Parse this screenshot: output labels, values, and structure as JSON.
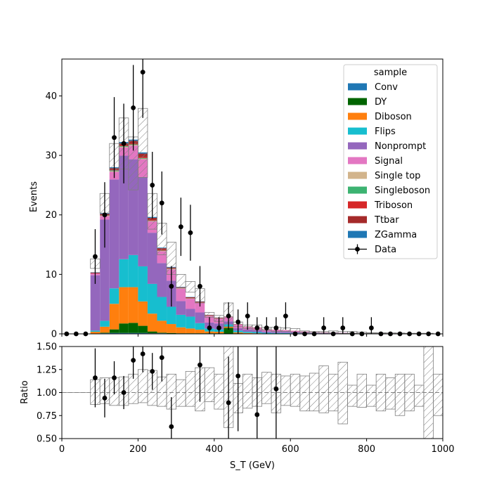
{
  "chart_data": [
    {
      "type": "bar",
      "stacked": true,
      "histogram": true,
      "ylabel": "Events",
      "xlim": [
        0,
        1000
      ],
      "ylim": [
        0,
        46.2
      ],
      "yticks": [
        0,
        10,
        20,
        30,
        40
      ],
      "bin_width": 25,
      "bin_low": [
        0,
        25,
        50,
        75,
        100,
        125,
        150,
        175,
        200,
        225,
        250,
        275,
        300,
        325,
        350,
        375,
        400,
        425,
        450,
        475,
        500,
        525,
        550,
        575,
        600,
        625,
        650,
        675,
        700,
        725,
        750,
        775,
        800,
        825,
        850,
        875,
        900,
        925,
        950,
        975
      ],
      "legend": {
        "title": "sample",
        "placement": "top-right"
      },
      "series": [
        {
          "name": "Conv",
          "color": "#1f77b4",
          "values": [
            0,
            0,
            0,
            0.05,
            0.1,
            0.15,
            0.15,
            0.15,
            0.15,
            0.1,
            0.1,
            0.05,
            0.05,
            0.05,
            0.05,
            0,
            0,
            0,
            0,
            0,
            0,
            0,
            0,
            0,
            0,
            0,
            0,
            0,
            0,
            0,
            0,
            0,
            0,
            0,
            0,
            0,
            0,
            0,
            0,
            0
          ]
        },
        {
          "name": "DY",
          "color": "#006400",
          "values": [
            0,
            0,
            0,
            0,
            0.1,
            0.6,
            1.6,
            1.7,
            1.2,
            0.3,
            0.1,
            0.1,
            0.05,
            0.05,
            0.05,
            0.1,
            0.1,
            1.0,
            0.1,
            0.05,
            0,
            0,
            0,
            0,
            0,
            0,
            0,
            0,
            0,
            0,
            0,
            0,
            0,
            0,
            0,
            0,
            0,
            0,
            0,
            0
          ]
        },
        {
          "name": "Diboson",
          "color": "#ff7f0e",
          "values": [
            0,
            0,
            0,
            0.3,
            1.0,
            4.3,
            6.1,
            6.0,
            4.1,
            3.0,
            2.0,
            1.5,
            1.0,
            0.8,
            0.6,
            0.3,
            0.25,
            0.2,
            0.15,
            0.1,
            0.1,
            0.05,
            0.05,
            0.05,
            0.05,
            0.03,
            0.03,
            0.02,
            0.02,
            0.02,
            0.02,
            0.02,
            0.02,
            0.02,
            0.01,
            0.01,
            0.01,
            0.01,
            0.01,
            0
          ]
        },
        {
          "name": "Flips",
          "color": "#17becf",
          "values": [
            0,
            0,
            0,
            0.2,
            1.0,
            2.6,
            4.7,
            5.4,
            5.9,
            5.0,
            4.0,
            2.9,
            2.1,
            2.0,
            1.1,
            0.5,
            0.4,
            0.4,
            0.3,
            0.2,
            0.2,
            0.15,
            0.1,
            0.1,
            0.05,
            0.05,
            0.05,
            0.05,
            0.05,
            0.05,
            0.03,
            0.03,
            0.03,
            0.02,
            0.02,
            0.02,
            0.01,
            0.01,
            0.01,
            0
          ]
        },
        {
          "name": "Nonprompt",
          "color": "#9467bd",
          "values": [
            0,
            0,
            0,
            9.3,
            17.0,
            18.3,
            17.4,
            16.1,
            15.0,
            8.6,
            5.7,
            4.4,
            2.3,
            1.3,
            1.8,
            1.0,
            1.0,
            0.5,
            0.4,
            0.4,
            0.3,
            0.2,
            0.2,
            0.2,
            0.2,
            0.15,
            0.1,
            0.1,
            0.1,
            0.08,
            0.06,
            0.05,
            0.05,
            0.04,
            0.03,
            0.02,
            0.02,
            0.02,
            0.01,
            0
          ]
        },
        {
          "name": "Signal",
          "color": "#e377c2",
          "values": [
            0,
            0,
            0,
            0.3,
            0.6,
            1.3,
            1.4,
            2.3,
            3.0,
            1.9,
            2.0,
            1.9,
            2.1,
            1.7,
            1.6,
            1.1,
            0.8,
            0.7,
            0.6,
            0.4,
            0.4,
            0.3,
            0.3,
            0.25,
            0.2,
            0.15,
            0.1,
            0.08,
            0.06,
            0.05,
            0.04,
            0.03,
            0.03,
            0.02,
            0.02,
            0.01,
            0.01,
            0.01,
            0.01,
            0
          ]
        },
        {
          "name": "Single top",
          "color": "#d2b48c",
          "values": [
            0,
            0,
            0,
            0,
            0.05,
            0.1,
            0.1,
            0.1,
            0.1,
            0.05,
            0.05,
            0.05,
            0.03,
            0.03,
            0.02,
            0.02,
            0.02,
            0.01,
            0.01,
            0.01,
            0,
            0,
            0,
            0,
            0,
            0,
            0,
            0,
            0,
            0,
            0,
            0,
            0,
            0,
            0,
            0,
            0,
            0,
            0,
            0
          ]
        },
        {
          "name": "Singleboson",
          "color": "#3cb371",
          "values": [
            0,
            0,
            0,
            0,
            0.05,
            0.1,
            0.1,
            0.1,
            0.1,
            0.05,
            0.05,
            0.05,
            0.03,
            0.03,
            0.02,
            0.02,
            0.02,
            0.01,
            0.01,
            0.01,
            0,
            0,
            0,
            0,
            0,
            0,
            0,
            0,
            0,
            0,
            0,
            0,
            0,
            0,
            0,
            0,
            0,
            0,
            0,
            0
          ]
        },
        {
          "name": "Triboson",
          "color": "#d62728",
          "values": [
            0,
            0,
            0,
            0,
            0.05,
            0.1,
            0.1,
            0.1,
            0.15,
            0.1,
            0.1,
            0.05,
            0.05,
            0.05,
            0.03,
            0.03,
            0.02,
            0.02,
            0.02,
            0.01,
            0.01,
            0.01,
            0,
            0,
            0,
            0,
            0,
            0,
            0,
            0,
            0,
            0,
            0,
            0,
            0,
            0,
            0,
            0,
            0,
            0
          ]
        },
        {
          "name": "Ttbar",
          "color": "#a52a2a",
          "values": [
            0,
            0,
            0,
            0.15,
            0.2,
            0.3,
            0.4,
            0.5,
            0.6,
            0.4,
            0.3,
            0.15,
            0.15,
            0.15,
            0.15,
            0.1,
            0.1,
            0.05,
            0.05,
            0.05,
            0.05,
            0.03,
            0.03,
            0.02,
            0.02,
            0.01,
            0.01,
            0.01,
            0,
            0,
            0,
            0,
            0,
            0,
            0,
            0,
            0,
            0,
            0,
            0
          ]
        },
        {
          "name": "ZGamma",
          "color": "#1f77b4",
          "values": [
            0,
            0,
            0,
            0.05,
            0.1,
            0.15,
            0.2,
            0.2,
            0.2,
            0.15,
            0.1,
            0.1,
            0.05,
            0.05,
            0.05,
            0.03,
            0.03,
            0.02,
            0.02,
            0.01,
            0.01,
            0.01,
            0,
            0,
            0,
            0,
            0,
            0,
            0,
            0,
            0,
            0,
            0,
            0,
            0,
            0,
            0,
            0,
            0,
            0
          ]
        }
      ],
      "uncertainty": {
        "up": [
          0,
          0,
          0,
          12.6,
          23.6,
          32.0,
          36.3,
          33.1,
          37.9,
          23.6,
          18.6,
          15.4,
          10.0,
          8.8,
          7.6,
          3.6,
          3.1,
          5.2,
          2.0,
          1.5,
          1.5,
          1.1,
          1.1,
          1.0,
          0.9,
          0.5,
          0.4,
          0.4,
          0.5,
          0.4,
          0.4,
          0.3,
          0.2,
          0.2,
          0.2,
          0.15,
          0.1,
          0.1,
          0.1,
          0
        ],
        "down": [
          0,
          0,
          0,
          11.0,
          20.3,
          27.5,
          27.7,
          24.2,
          26.3,
          17.6,
          13.3,
          10.0,
          7.8,
          7.0,
          5.2,
          2.8,
          2.1,
          1.2,
          1.2,
          0.9,
          0.7,
          0.6,
          0.4,
          0.4,
          0.3,
          0.2,
          0.2,
          0.15,
          0.15,
          0.1,
          0.1,
          0.1,
          0.1,
          0.08,
          0.06,
          0.05,
          0.04,
          0.03,
          0.02,
          0
        ]
      },
      "data": {
        "name": "Data",
        "x": [
          12.5,
          37.5,
          62.5,
          87.5,
          112.5,
          137.5,
          162.5,
          187.5,
          212.5,
          237.5,
          262.5,
          287.5,
          312.5,
          337.5,
          362.5,
          387.5,
          412.5,
          437.5,
          462.5,
          487.5,
          512.5,
          537.5,
          562.5,
          587.5,
          612.5,
          637.5,
          662.5,
          687.5,
          712.5,
          737.5,
          762.5,
          787.5,
          812.5,
          837.5,
          862.5,
          887.5,
          912.5,
          937.5,
          962.5,
          987.5
        ],
        "y": [
          0,
          0,
          0,
          13,
          20,
          33,
          32,
          38,
          44,
          25,
          22,
          8,
          18,
          17,
          8,
          1,
          1,
          3,
          2,
          3,
          1,
          1,
          1,
          3,
          0,
          0,
          0,
          1,
          0,
          1,
          0,
          0,
          1,
          0,
          0,
          0,
          0,
          0,
          0,
          0
        ],
        "yerr": [
          0,
          0,
          0,
          4.6,
          5.5,
          6.8,
          6.7,
          7.2,
          7.7,
          5.6,
          5.3,
          3.4,
          4.9,
          4.7,
          3.4,
          1.8,
          1.8,
          2.3,
          2.1,
          2.3,
          1.8,
          1.8,
          1.8,
          2.3,
          0,
          0,
          0,
          1.8,
          0,
          1.8,
          0,
          0,
          1.8,
          0,
          0,
          0,
          0,
          0,
          0,
          0
        ]
      }
    },
    {
      "type": "scatter",
      "xlabel": "S_T (GeV)",
      "ylabel": "Ratio",
      "xlim": [
        0,
        1000
      ],
      "ylim": [
        0.5,
        1.5
      ],
      "xticks": [
        0,
        200,
        400,
        600,
        800,
        1000
      ],
      "yticks": [
        "0.50",
        "0.75",
        "1.00",
        "1.25",
        "1.50"
      ],
      "reference_line": 1.0,
      "uncertainty_band": {
        "up": [
          1.0,
          1.0,
          1.0,
          1.14,
          1.16,
          1.16,
          1.17,
          1.2,
          1.25,
          1.24,
          1.17,
          1.2,
          1.14,
          1.23,
          1.27,
          1.27,
          1.2,
          1.5,
          1.1,
          1.2,
          1.16,
          1.22,
          1.2,
          1.18,
          1.2,
          1.18,
          1.21,
          1.29,
          1.2,
          1.33,
          1.08,
          1.2,
          1.08,
          1.2,
          1.16,
          1.2,
          1.2,
          1.08,
          1.5,
          1.2
        ],
        "down": [
          1.0,
          1.0,
          1.0,
          0.87,
          0.88,
          0.86,
          0.86,
          0.88,
          0.89,
          0.86,
          0.85,
          0.82,
          0.85,
          0.85,
          0.8,
          0.9,
          0.82,
          0.62,
          0.78,
          0.83,
          0.85,
          0.88,
          0.78,
          0.86,
          0.85,
          0.8,
          0.8,
          0.78,
          0.8,
          0.66,
          0.85,
          0.84,
          0.85,
          0.8,
          0.82,
          0.75,
          0.8,
          0.85,
          0.5,
          0.75
        ]
      },
      "points": {
        "x": [
          87.5,
          112.5,
          137.5,
          162.5,
          187.5,
          212.5,
          237.5,
          262.5,
          287.5,
          362.5,
          437.5,
          462.5,
          512.5,
          562.5
        ],
        "y": [
          1.16,
          0.94,
          1.16,
          1.0,
          1.35,
          1.42,
          1.23,
          1.38,
          0.63,
          1.3,
          0.89,
          1.18,
          0.76,
          1.04
        ],
        "yerr": [
          0.32,
          0.21,
          0.18,
          0.18,
          0.2,
          0.2,
          0.2,
          0.26,
          0.32,
          0.4,
          0.5,
          0.6,
          0.76,
          0.6
        ]
      }
    }
  ]
}
